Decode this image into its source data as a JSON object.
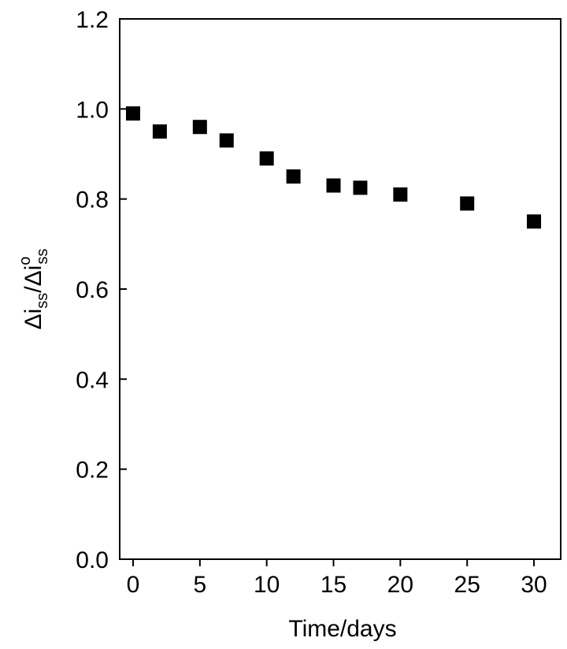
{
  "chart_data": {
    "type": "scatter",
    "xlabel": "Time/days",
    "ylabel": [
      "Δi",
      "ss",
      "/Δi",
      "o",
      "ss"
    ],
    "x": [
      0,
      2,
      5,
      7,
      10,
      12,
      15,
      17,
      20,
      25,
      30
    ],
    "series": [
      {
        "color": "#000000",
        "values": [
          0.99,
          0.95,
          0.96,
          0.93,
          0.89,
          0.85,
          0.83,
          0.825,
          0.81,
          0.79,
          0.75
        ]
      }
    ],
    "xlim": [
      -1,
      32
    ],
    "xticks": [
      0,
      5,
      10,
      15,
      20,
      25,
      30
    ],
    "ylim": [
      0,
      1.2
    ],
    "yticks": [
      {
        "value": 0,
        "label": "0.0"
      },
      {
        "value": 0.2,
        "label": "0.2"
      },
      {
        "value": 0.4,
        "label": "0.4"
      },
      {
        "value": 0.6,
        "label": "0.6"
      },
      {
        "value": 0.8,
        "label": "0.8"
      },
      {
        "value": 1,
        "label": "1.0"
      },
      {
        "value": 1.2,
        "label": "1.2"
      }
    ],
    "grid": false
  }
}
